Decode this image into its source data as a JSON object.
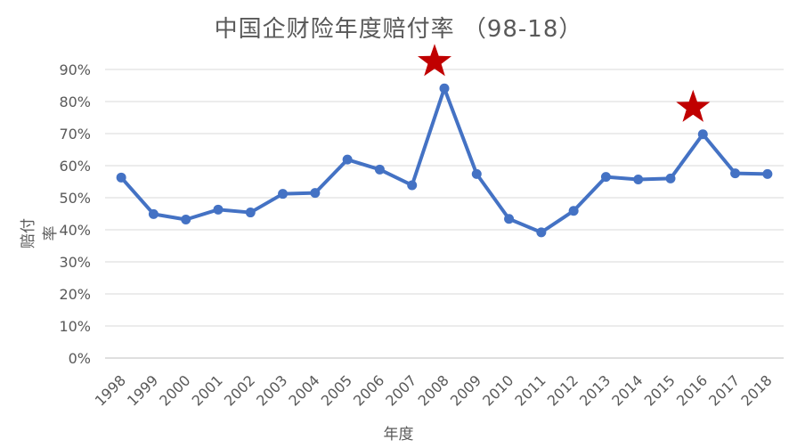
{
  "chart_data": {
    "type": "line",
    "title": "中国企财险年度赔付率 （98-18）",
    "xlabel": "年度",
    "ylabel": "赔付率",
    "ylim": [
      0,
      0.9
    ],
    "y_ticks": [
      "0%",
      "10%",
      "20%",
      "30%",
      "40%",
      "50%",
      "60%",
      "70%",
      "80%",
      "90%"
    ],
    "grid": true,
    "categories": [
      "1998",
      "1999",
      "2000",
      "2001",
      "2002",
      "2003",
      "2004",
      "2005",
      "2006",
      "2007",
      "2008",
      "2009",
      "2010",
      "2011",
      "2012",
      "2013",
      "2014",
      "2015",
      "2016",
      "2017",
      "2018"
    ],
    "series": [
      {
        "color": "#4472C4",
        "values": [
          0.563,
          0.449,
          0.432,
          0.463,
          0.454,
          0.512,
          0.515,
          0.619,
          0.588,
          0.539,
          0.841,
          0.574,
          0.434,
          0.392,
          0.459,
          0.565,
          0.557,
          0.56,
          0.698,
          0.576,
          0.574
        ]
      }
    ],
    "markers": [
      {
        "type": "star",
        "color": "#C00000",
        "category": "2008"
      },
      {
        "type": "star",
        "color": "#C00000",
        "category": "2016"
      }
    ]
  }
}
